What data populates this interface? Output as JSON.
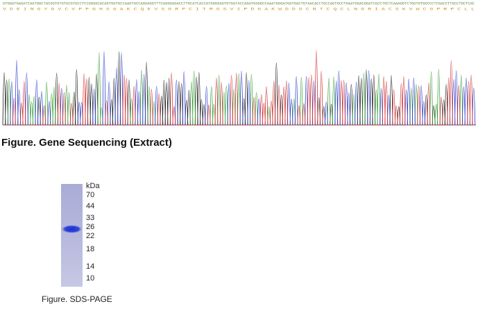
{
  "sequencing": {
    "dna": "GTGGATGAGATCAATGGCTACGGTGTGTGCGTGCCTCCGGGGCACAGTGGTGCCAAGTGCCAGGAGGTTTCAGGGAGACCTTGCATCACCATGGGGAGTGTGATACCAGATGGGGCCAAATGGGATGATGACTGTAACACCTGCCAGTGCCTGAATGGACGGATCGCCTGCTCAAAGGTCTGGTGTGGCCCTCGACCTTGCCTGCTCAC",
    "protein": "V D E I N G Y G V C V P P G H S G A K C Q E V S G R P C I T M G S V I P D G A K W D D D C N T C Q C L N G R I A C S K V W C G P R P C L L",
    "caption": "Figure. Gene Sequencing (Extract)"
  },
  "sds_page": {
    "unit": "kDa",
    "markers": [
      70,
      44,
      33,
      26,
      22,
      18,
      14,
      10
    ],
    "caption": "Figure. SDS-PAGE"
  }
}
